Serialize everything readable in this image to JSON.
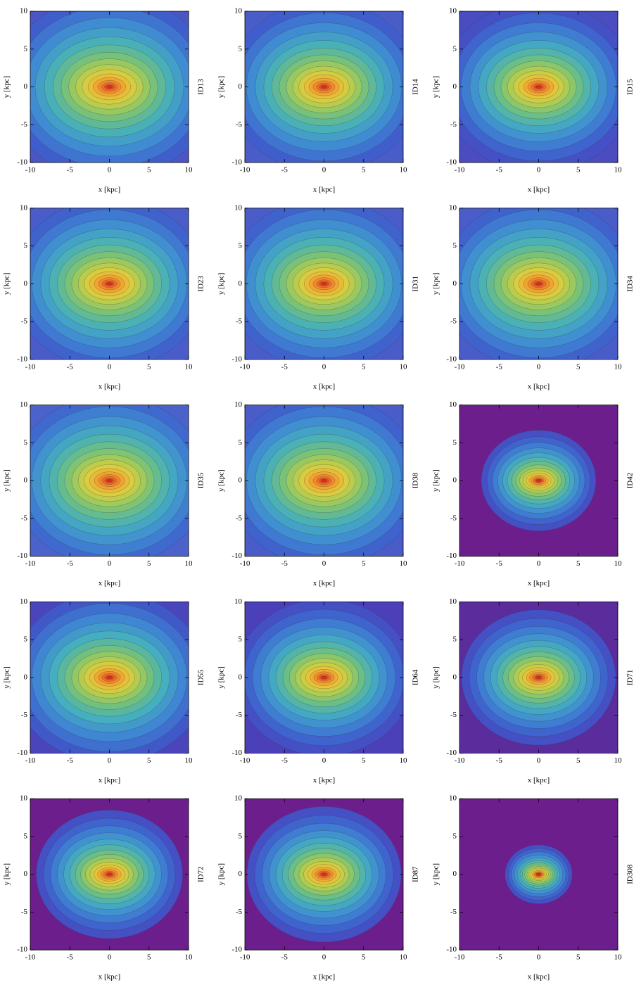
{
  "chart_data": [
    {
      "type": "contour",
      "title": "ID13",
      "xlabel": "x [kpc]",
      "ylabel": "y [kpc]",
      "xlim": [
        -10,
        10
      ],
      "ylim": [
        -10,
        10
      ],
      "xticks": [
        -10,
        -5,
        0,
        5,
        10
      ],
      "yticks": [
        -10,
        -5,
        0,
        5,
        10
      ],
      "background": "#4b55c4"
    },
    {
      "type": "contour",
      "title": "ID14",
      "xlabel": "x [kpc]",
      "ylabel": "y [kpc]",
      "xlim": [
        -10,
        10
      ],
      "ylim": [
        -10,
        10
      ],
      "xticks": [
        -10,
        -5,
        0,
        5,
        10
      ],
      "yticks": [
        -10,
        -5,
        0,
        5,
        10
      ],
      "background": "#4a5cc8"
    },
    {
      "type": "contour",
      "title": "ID15",
      "xlabel": "x [kpc]",
      "ylabel": "y [kpc]",
      "xlim": [
        -10,
        10
      ],
      "ylim": [
        -10,
        10
      ],
      "xticks": [
        -10,
        -5,
        0,
        5,
        10
      ],
      "yticks": [
        -10,
        -5,
        0,
        5,
        10
      ],
      "background": "#4a4cc0"
    },
    {
      "type": "contour",
      "title": "ID23",
      "xlabel": "x [kpc]",
      "ylabel": "y [kpc]",
      "xlim": [
        -10,
        10
      ],
      "ylim": [
        -10,
        10
      ],
      "xticks": [
        -10,
        -5,
        0,
        5,
        10
      ],
      "yticks": [
        -10,
        -5,
        0,
        5,
        10
      ],
      "background": "#4a5cc8"
    },
    {
      "type": "contour",
      "title": "ID31",
      "xlabel": "x [kpc]",
      "ylabel": "y [kpc]",
      "xlim": [
        -10,
        10
      ],
      "ylim": [
        -10,
        10
      ],
      "xticks": [
        -10,
        -5,
        0,
        5,
        10
      ],
      "yticks": [
        -10,
        -5,
        0,
        5,
        10
      ],
      "background": "#4a5cc8"
    },
    {
      "type": "contour",
      "title": "ID34",
      "xlabel": "x [kpc]",
      "ylabel": "y [kpc]",
      "xlim": [
        -10,
        10
      ],
      "ylim": [
        -10,
        10
      ],
      "xticks": [
        -10,
        -5,
        0,
        5,
        10
      ],
      "yticks": [
        -10,
        -5,
        0,
        5,
        10
      ],
      "background": "#4a5cc8"
    },
    {
      "type": "contour",
      "title": "ID35",
      "xlabel": "x [kpc]",
      "ylabel": "y [kpc]",
      "xlim": [
        -10,
        10
      ],
      "ylim": [
        -10,
        10
      ],
      "xticks": [
        -10,
        -5,
        0,
        5,
        10
      ],
      "yticks": [
        -10,
        -5,
        0,
        5,
        10
      ],
      "background": "#4a62ca"
    },
    {
      "type": "contour",
      "title": "ID38",
      "xlabel": "x [kpc]",
      "ylabel": "y [kpc]",
      "xlim": [
        -10,
        10
      ],
      "ylim": [
        -10,
        10
      ],
      "xticks": [
        -10,
        -5,
        0,
        5,
        10
      ],
      "yticks": [
        -10,
        -5,
        0,
        5,
        10
      ],
      "background": "#4a5cc8"
    },
    {
      "type": "contour",
      "title": "ID42",
      "xlabel": "x [kpc]",
      "ylabel": "y [kpc]",
      "xlim": [
        -10,
        10
      ],
      "ylim": [
        -10,
        10
      ],
      "xticks": [
        -10,
        -5,
        0,
        5,
        10
      ],
      "yticks": [
        -10,
        -5,
        0,
        5,
        10
      ],
      "background": "#6c1f8c"
    },
    {
      "type": "contour",
      "title": "ID55",
      "xlabel": "x [kpc]",
      "ylabel": "y [kpc]",
      "xlim": [
        -10,
        10
      ],
      "ylim": [
        -10,
        10
      ],
      "xticks": [
        -10,
        -5,
        0,
        5,
        10
      ],
      "yticks": [
        -10,
        -5,
        0,
        5,
        10
      ],
      "background": "#4b45bc"
    },
    {
      "type": "contour",
      "title": "ID64",
      "xlabel": "x [kpc]",
      "ylabel": "y [kpc]",
      "xlim": [
        -10,
        10
      ],
      "ylim": [
        -10,
        10
      ],
      "xticks": [
        -10,
        -5,
        0,
        5,
        10
      ],
      "yticks": [
        -10,
        -5,
        0,
        5,
        10
      ],
      "background": "#4b40b8"
    },
    {
      "type": "contour",
      "title": "ID71",
      "xlabel": "x [kpc]",
      "ylabel": "y [kpc]",
      "xlim": [
        -10,
        10
      ],
      "ylim": [
        -10,
        10
      ],
      "xticks": [
        -10,
        -5,
        0,
        5,
        10
      ],
      "yticks": [
        -10,
        -5,
        0,
        5,
        10
      ],
      "background": "#5a2c9c"
    },
    {
      "type": "contour",
      "title": "ID72",
      "xlabel": "x [kpc]",
      "ylabel": "y [kpc]",
      "xlim": [
        -10,
        10
      ],
      "ylim": [
        -10,
        10
      ],
      "xticks": [
        -10,
        -5,
        0,
        5,
        10
      ],
      "yticks": [
        -10,
        -5,
        0,
        5,
        10
      ],
      "background": "#6c1f8c"
    },
    {
      "type": "contour",
      "title": "ID87",
      "xlabel": "x [kpc]",
      "ylabel": "y [kpc]",
      "xlim": [
        -10,
        10
      ],
      "ylim": [
        -10,
        10
      ],
      "xticks": [
        -10,
        -5,
        0,
        5,
        10
      ],
      "yticks": [
        -10,
        -5,
        0,
        5,
        10
      ],
      "background": "#6c1f8c"
    },
    {
      "type": "contour",
      "title": "ID308",
      "xlabel": "x [kpc]",
      "ylabel": "y [kpc]",
      "xlim": [
        -10,
        10
      ],
      "ylim": [
        -10,
        10
      ],
      "xticks": [
        -10,
        -5,
        0,
        5,
        10
      ],
      "yticks": [
        -10,
        -5,
        0,
        5,
        10
      ],
      "background": "#6c1f8c"
    }
  ]
}
